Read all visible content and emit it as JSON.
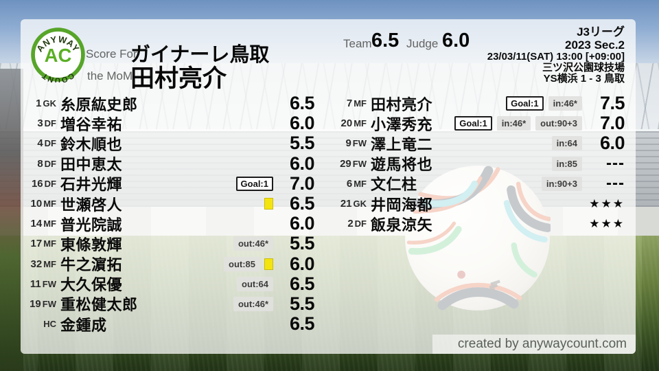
{
  "logo": {
    "top": "ANYWAY",
    "center": "AC",
    "bottom": "COUNT"
  },
  "header": {
    "score_for_label": "Score For",
    "team_name": "ガイナーレ鳥取",
    "mom_label": "the MoM",
    "mom_name": "田村亮介",
    "team_label": "Team",
    "team_score": "6.5",
    "judge_label": "Judge",
    "judge_score": "6.0",
    "league": "J3リーグ",
    "season": "2023 Sec.2",
    "datetime": "23/03/11(SAT) 13:00 [+09:00]",
    "venue": "三ツ沢公園球技場",
    "result": "YS横浜 1 - 3 鳥取"
  },
  "left_players": [
    {
      "num": "1",
      "pos": "GK",
      "name": "糸原紘史郎",
      "badges": [],
      "yellow": false,
      "rating": "6.5"
    },
    {
      "num": "3",
      "pos": "DF",
      "name": "増谷幸祐",
      "badges": [],
      "yellow": false,
      "rating": "6.0"
    },
    {
      "num": "4",
      "pos": "DF",
      "name": "鈴木順也",
      "badges": [],
      "yellow": false,
      "rating": "5.5"
    },
    {
      "num": "8",
      "pos": "DF",
      "name": "田中恵太",
      "badges": [],
      "yellow": false,
      "rating": "6.0"
    },
    {
      "num": "16",
      "pos": "DF",
      "name": "石井光輝",
      "badges": [
        {
          "type": "goal",
          "label": "Goal:1"
        }
      ],
      "yellow": false,
      "rating": "7.0"
    },
    {
      "num": "10",
      "pos": "MF",
      "name": "世瀬啓人",
      "badges": [],
      "yellow": true,
      "rating": "6.5"
    },
    {
      "num": "14",
      "pos": "MF",
      "name": "普光院誠",
      "badges": [],
      "yellow": false,
      "rating": "6.0"
    },
    {
      "num": "17",
      "pos": "MF",
      "name": "東條敦輝",
      "badges": [
        {
          "type": "sub",
          "label": "out:46*"
        }
      ],
      "yellow": false,
      "rating": "5.5"
    },
    {
      "num": "32",
      "pos": "MF",
      "name": "牛之濵拓",
      "badges": [
        {
          "type": "sub",
          "label": "out:85"
        }
      ],
      "yellow": true,
      "rating": "6.0"
    },
    {
      "num": "11",
      "pos": "FW",
      "name": "大久保優",
      "badges": [
        {
          "type": "sub",
          "label": "out:64"
        }
      ],
      "yellow": false,
      "rating": "6.5"
    },
    {
      "num": "19",
      "pos": "FW",
      "name": "重松健太郎",
      "badges": [
        {
          "type": "sub",
          "label": "out:46*"
        }
      ],
      "yellow": false,
      "rating": "5.5"
    },
    {
      "num": "",
      "pos": "HC",
      "name": "金鍾成",
      "badges": [],
      "yellow": false,
      "rating": "6.5"
    }
  ],
  "right_players": [
    {
      "num": "7",
      "pos": "MF",
      "name": "田村亮介",
      "badges": [
        {
          "type": "goal",
          "label": "Goal:1"
        },
        {
          "type": "sub",
          "label": "in:46*"
        }
      ],
      "yellow": false,
      "rating": "7.5"
    },
    {
      "num": "20",
      "pos": "MF",
      "name": "小澤秀充",
      "badges": [
        {
          "type": "goal",
          "label": "Goal:1"
        },
        {
          "type": "sub",
          "label": "in:46*"
        },
        {
          "type": "sub",
          "label": "out:90+3"
        }
      ],
      "yellow": false,
      "rating": "7.0"
    },
    {
      "num": "9",
      "pos": "FW",
      "name": "澤上竜二",
      "badges": [
        {
          "type": "sub",
          "label": "in:64"
        }
      ],
      "yellow": false,
      "rating": "6.0"
    },
    {
      "num": "29",
      "pos": "FW",
      "name": "遊馬将也",
      "badges": [
        {
          "type": "sub",
          "label": "in:85"
        }
      ],
      "yellow": false,
      "rating": "---"
    },
    {
      "num": "6",
      "pos": "MF",
      "name": "文仁柱",
      "badges": [
        {
          "type": "sub",
          "label": "in:90+3"
        }
      ],
      "yellow": false,
      "rating": "---"
    },
    {
      "num": "21",
      "pos": "GK",
      "name": "井岡海都",
      "badges": [],
      "yellow": false,
      "rating": "★★★"
    },
    {
      "num": "2",
      "pos": "DF",
      "name": "飯泉涼矢",
      "badges": [],
      "yellow": false,
      "rating": "★★★"
    }
  ],
  "footer": {
    "credit": "created by anywaycount.com"
  },
  "colors": {
    "accent_green": "#5aa72a",
    "logo_text_dark": "#223a10",
    "yellow_card": "#f4e40d",
    "goal_badge_border": "#1b1b1b",
    "sub_badge_bg": "#e1e1de",
    "text_dark": "#0a0a0a",
    "label_gray": "#636363",
    "credit_gray": "#5a5f5a"
  }
}
